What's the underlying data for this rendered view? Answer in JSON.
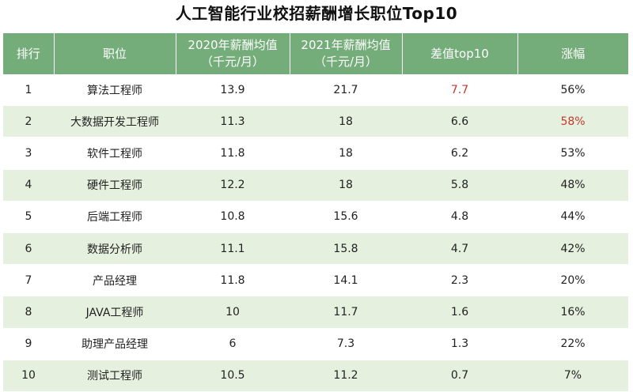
{
  "title": "人工智能行业校招薪酬增长职位Top10",
  "headers": {
    "rank": "排行",
    "position": "职位",
    "salary_2020": "2020年薪酬均值\n（千元/月）",
    "salary_2021": "2021年薪酬均值\n（千元/月）",
    "diff": "差值top10",
    "growth": "涨幅"
  },
  "highlight_color": "#c0392b",
  "rows": [
    {
      "rank": "1",
      "position": "算法工程师",
      "s2020": "13.9",
      "s2021": "21.7",
      "diff": "7.7",
      "growth": "56%"
    },
    {
      "rank": "2",
      "position": "大数据开发工程师",
      "s2020": "11.3",
      "s2021": "18",
      "diff": "6.6",
      "growth": "58%"
    },
    {
      "rank": "3",
      "position": "软件工程师",
      "s2020": "11.8",
      "s2021": "18",
      "diff": "6.2",
      "growth": "53%"
    },
    {
      "rank": "4",
      "position": "硬件工程师",
      "s2020": "12.2",
      "s2021": "18",
      "diff": "5.8",
      "growth": "48%"
    },
    {
      "rank": "5",
      "position": "后端工程师",
      "s2020": "10.8",
      "s2021": "15.6",
      "diff": "4.8",
      "growth": "44%"
    },
    {
      "rank": "6",
      "position": "数据分析师",
      "s2020": "11.1",
      "s2021": "15.8",
      "diff": "4.7",
      "growth": "42%"
    },
    {
      "rank": "7",
      "position": "产品经理",
      "s2020": "11.8",
      "s2021": "14.1",
      "diff": "2.3",
      "growth": "20%"
    },
    {
      "rank": "8",
      "position": "JAVA工程师",
      "s2020": "10",
      "s2021": "11.7",
      "diff": "1.6",
      "growth": "16%"
    },
    {
      "rank": "9",
      "position": "助理产品经理",
      "s2020": "6",
      "s2021": "7.3",
      "diff": "1.3",
      "growth": "22%"
    },
    {
      "rank": "10",
      "position": "测试工程师",
      "s2020": "10.5",
      "s2021": "11.2",
      "diff": "0.7",
      "growth": "7%"
    }
  ]
}
